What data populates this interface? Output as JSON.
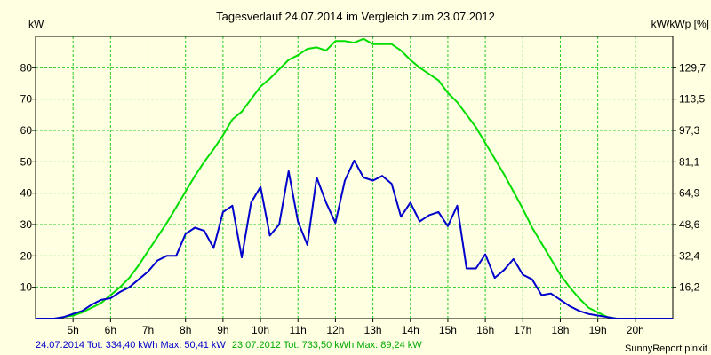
{
  "chart_data": {
    "type": "line",
    "title": "Tagesverlauf 24.07.2014 im Vergleich zum 23.07.2012",
    "ylabel_left": "kW",
    "ylabel_right": "kW/kWp [%]",
    "ylim": [
      0,
      90
    ],
    "xlim": [
      4.0,
      21.0
    ],
    "grid": true,
    "x_ticks": [
      "5h",
      "6h",
      "7h",
      "8h",
      "9h",
      "10h",
      "11h",
      "12h",
      "13h",
      "14h",
      "15h",
      "16h",
      "17h",
      "18h",
      "19h",
      "20h"
    ],
    "y_ticks_left": [
      "10",
      "20",
      "30",
      "40",
      "50",
      "60",
      "70",
      "80"
    ],
    "y_ticks_right": [
      "16,2",
      "32,4",
      "48,6",
      "64,9",
      "81,1",
      "97,3",
      "113,5",
      "129,7"
    ],
    "colors": {
      "series_2014": "#0000cc",
      "series_2012": "#00dd00",
      "grid": "#22cc22"
    },
    "series": [
      {
        "key": "s2014",
        "color": "#0000cc",
        "points": [
          [
            4.0,
            0
          ],
          [
            4.5,
            0
          ],
          [
            4.75,
            0.5
          ],
          [
            5.0,
            1.5
          ],
          [
            5.25,
            2.5
          ],
          [
            5.5,
            4.5
          ],
          [
            5.75,
            6
          ],
          [
            6.0,
            6.5
          ],
          [
            6.25,
            8.5
          ],
          [
            6.5,
            10
          ],
          [
            6.75,
            12.5
          ],
          [
            7.0,
            15
          ],
          [
            7.25,
            18.5
          ],
          [
            7.5,
            20
          ],
          [
            7.75,
            20
          ],
          [
            8.0,
            27
          ],
          [
            8.25,
            29
          ],
          [
            8.5,
            28
          ],
          [
            8.75,
            22.5
          ],
          [
            9.0,
            34
          ],
          [
            9.25,
            36
          ],
          [
            9.5,
            19.5
          ],
          [
            9.75,
            37
          ],
          [
            10.0,
            42
          ],
          [
            10.25,
            26.5
          ],
          [
            10.5,
            30
          ],
          [
            10.75,
            47
          ],
          [
            11.0,
            31
          ],
          [
            11.25,
            23.5
          ],
          [
            11.5,
            45
          ],
          [
            11.75,
            37
          ],
          [
            12.0,
            30.5
          ],
          [
            12.25,
            44
          ],
          [
            12.5,
            50.4
          ],
          [
            12.75,
            45
          ],
          [
            13.0,
            44
          ],
          [
            13.25,
            45.5
          ],
          [
            13.5,
            43
          ],
          [
            13.75,
            32.5
          ],
          [
            14.0,
            37
          ],
          [
            14.25,
            31
          ],
          [
            14.5,
            33
          ],
          [
            14.75,
            34
          ],
          [
            15.0,
            29.5
          ],
          [
            15.25,
            36
          ],
          [
            15.5,
            16
          ],
          [
            15.75,
            16
          ],
          [
            16.0,
            20.5
          ],
          [
            16.25,
            13
          ],
          [
            16.5,
            15.5
          ],
          [
            16.75,
            19
          ],
          [
            17.0,
            14
          ],
          [
            17.25,
            12.5
          ],
          [
            17.5,
            7.5
          ],
          [
            17.75,
            8
          ],
          [
            18.0,
            6
          ],
          [
            18.25,
            4
          ],
          [
            18.5,
            2.5
          ],
          [
            18.75,
            1.5
          ],
          [
            19.0,
            1
          ],
          [
            19.25,
            0.5
          ],
          [
            19.5,
            0
          ],
          [
            21.0,
            0
          ]
        ]
      },
      {
        "key": "s2012",
        "color": "#00dd00",
        "points": [
          [
            4.0,
            0
          ],
          [
            4.5,
            0
          ],
          [
            4.75,
            0.5
          ],
          [
            5.0,
            1
          ],
          [
            5.25,
            2
          ],
          [
            5.5,
            3.5
          ],
          [
            5.75,
            5
          ],
          [
            6.0,
            7.5
          ],
          [
            6.25,
            10
          ],
          [
            6.5,
            13
          ],
          [
            6.75,
            17
          ],
          [
            7.0,
            21.5
          ],
          [
            7.25,
            26
          ],
          [
            7.5,
            30.5
          ],
          [
            7.75,
            35.5
          ],
          [
            8.0,
            40.5
          ],
          [
            8.25,
            45.5
          ],
          [
            8.5,
            50
          ],
          [
            8.75,
            54
          ],
          [
            9.0,
            58.5
          ],
          [
            9.25,
            63.5
          ],
          [
            9.5,
            66
          ],
          [
            9.75,
            70
          ],
          [
            10.0,
            74
          ],
          [
            10.25,
            76.5
          ],
          [
            10.5,
            79.5
          ],
          [
            10.75,
            82.5
          ],
          [
            11.0,
            84
          ],
          [
            11.25,
            86
          ],
          [
            11.5,
            86.5
          ],
          [
            11.75,
            85.5
          ],
          [
            12.0,
            88.5
          ],
          [
            12.25,
            88.5
          ],
          [
            12.5,
            88
          ],
          [
            12.75,
            89.2
          ],
          [
            13.0,
            87.5
          ],
          [
            13.25,
            87.5
          ],
          [
            13.5,
            87.5
          ],
          [
            13.75,
            85.5
          ],
          [
            14.0,
            82.5
          ],
          [
            14.25,
            80
          ],
          [
            14.5,
            78
          ],
          [
            14.75,
            76
          ],
          [
            15.0,
            72
          ],
          [
            15.25,
            69
          ],
          [
            15.5,
            65
          ],
          [
            15.75,
            61
          ],
          [
            16.0,
            56
          ],
          [
            16.25,
            51
          ],
          [
            16.5,
            46
          ],
          [
            16.75,
            40.5
          ],
          [
            17.0,
            35
          ],
          [
            17.25,
            29
          ],
          [
            17.5,
            24
          ],
          [
            17.75,
            19
          ],
          [
            18.0,
            14
          ],
          [
            18.25,
            10
          ],
          [
            18.5,
            6.5
          ],
          [
            18.75,
            3.5
          ],
          [
            19.0,
            2
          ],
          [
            19.25,
            0.5
          ],
          [
            19.5,
            0
          ],
          [
            21.0,
            0
          ]
        ]
      }
    ]
  },
  "footer": {
    "legend_2014": "24.07.2014 Tot: 334,40 kWh Max: 50,41 kW",
    "legend_2012": "23.07.2012 Tot: 733,50 kWh Max: 89,24 kW",
    "credit": "SunnyReport pinxit"
  }
}
